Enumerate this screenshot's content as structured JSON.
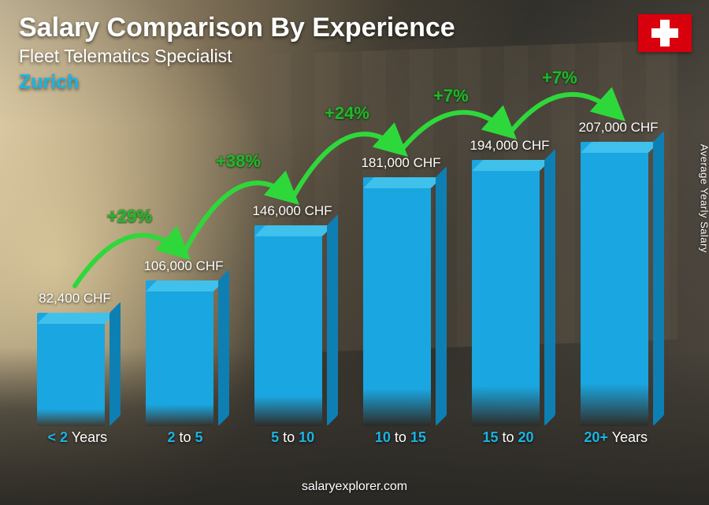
{
  "title": "Salary Comparison By Experience",
  "subtitle": "Fleet Telematics Specialist",
  "location": "Zurich",
  "location_color": "#19b4e3",
  "ylabel": "Average Yearly Salary",
  "footer": "salaryexplorer.com",
  "flag": {
    "bg": "#d9000d",
    "cross": "#ffffff"
  },
  "chart": {
    "type": "bar",
    "bar_color_front": "#1aa6e0",
    "bar_color_top": "#3fc1ec",
    "bar_color_side": "#0e7fb3",
    "value_text_color": "#ffffff",
    "xlabel_color": "#19b4e3",
    "xlabel_dim_color": "#ffffff",
    "arc_color": "#2fd83a",
    "arc_label_color": "#2fd83a",
    "value_fontsize": 17,
    "xlabel_fontsize": 18,
    "arc_label_fontsize": 22,
    "currency_suffix": " CHF",
    "max_value": 230000,
    "bars": [
      {
        "x_bold": "< 2",
        "x_dim": " Years",
        "value": 82400,
        "label": "82,400 CHF"
      },
      {
        "x_bold": "2",
        "x_mid": " to ",
        "x_bold2": "5",
        "value": 106000,
        "label": "106,000 CHF"
      },
      {
        "x_bold": "5",
        "x_mid": " to ",
        "x_bold2": "10",
        "value": 146000,
        "label": "146,000 CHF"
      },
      {
        "x_bold": "10",
        "x_mid": " to ",
        "x_bold2": "15",
        "value": 181000,
        "label": "181,000 CHF"
      },
      {
        "x_bold": "15",
        "x_mid": " to ",
        "x_bold2": "20",
        "value": 194000,
        "label": "194,000 CHF"
      },
      {
        "x_bold": "20+",
        "x_dim": " Years",
        "value": 207000,
        "label": "207,000 CHF"
      }
    ],
    "arcs": [
      {
        "from": 0,
        "to": 1,
        "label": "+29%"
      },
      {
        "from": 1,
        "to": 2,
        "label": "+38%"
      },
      {
        "from": 2,
        "to": 3,
        "label": "+24%"
      },
      {
        "from": 3,
        "to": 4,
        "label": "+7%"
      },
      {
        "from": 4,
        "to": 5,
        "label": "+7%"
      }
    ]
  }
}
